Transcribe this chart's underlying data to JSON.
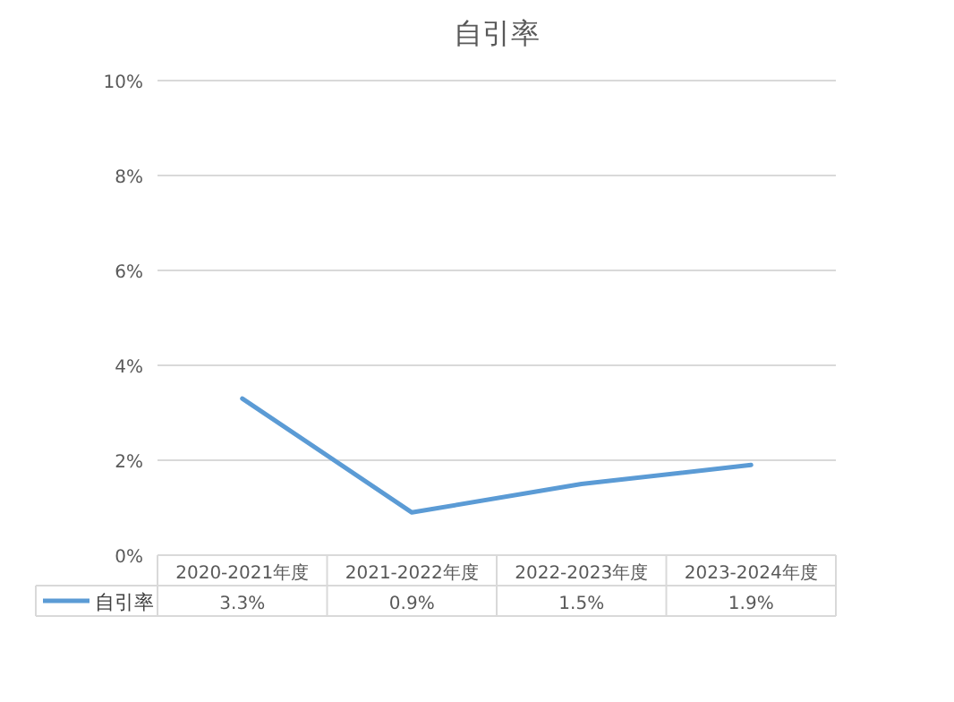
{
  "chart_data": {
    "type": "line",
    "title": "自引率",
    "categories": [
      "2020-2021年度",
      "2021-2022年度",
      "2022-2023年度",
      "2023-2024年度"
    ],
    "series": [
      {
        "name": "自引率",
        "color": "#5b9bd5",
        "values": [
          3.3,
          0.9,
          1.5,
          1.9
        ]
      }
    ],
    "value_labels": [
      "3.3%",
      "0.9%",
      "1.5%",
      "1.9%"
    ],
    "ylim": [
      0,
      10
    ],
    "yticks": [
      {
        "value": 0,
        "label": "0%"
      },
      {
        "value": 2,
        "label": "2%"
      },
      {
        "value": 4,
        "label": "4%"
      },
      {
        "value": 6,
        "label": "6%"
      },
      {
        "value": 8,
        "label": "8%"
      },
      {
        "value": 10,
        "label": "10%"
      }
    ],
    "grid": "y",
    "line_style": "solid",
    "marker": "none"
  }
}
